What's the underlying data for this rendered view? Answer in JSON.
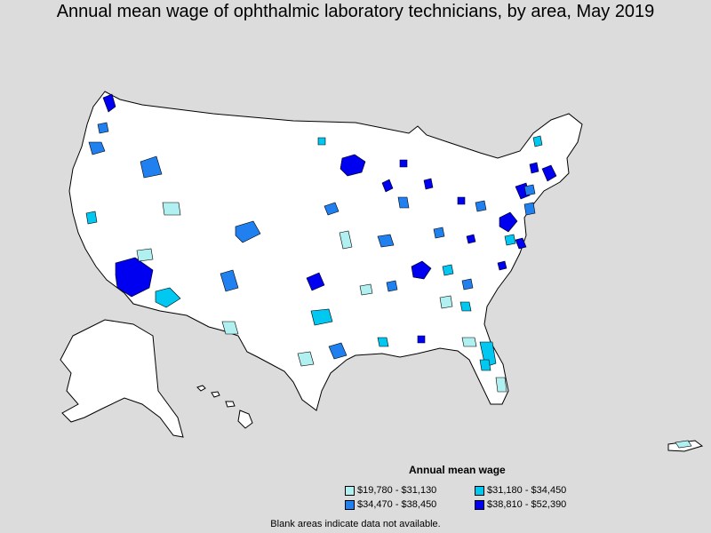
{
  "title": "Annual mean wage of ophthalmic laboratory technicians, by area, May 2019",
  "legend": {
    "title": "Annual mean wage",
    "items": [
      {
        "label": "$19,780 - $31,130",
        "color": "#b0f0f0"
      },
      {
        "label": "$31,180 - $34,450",
        "color": "#00c8f0"
      },
      {
        "label": "$34,470 - $38,450",
        "color": "#2080f0"
      },
      {
        "label": "$38,810 - $52,390",
        "color": "#0000f0"
      }
    ]
  },
  "note": "Blank areas indicate data not available.",
  "colors": {
    "background": "#dcdcdc",
    "land": "#ffffff",
    "border": "#000000"
  }
}
